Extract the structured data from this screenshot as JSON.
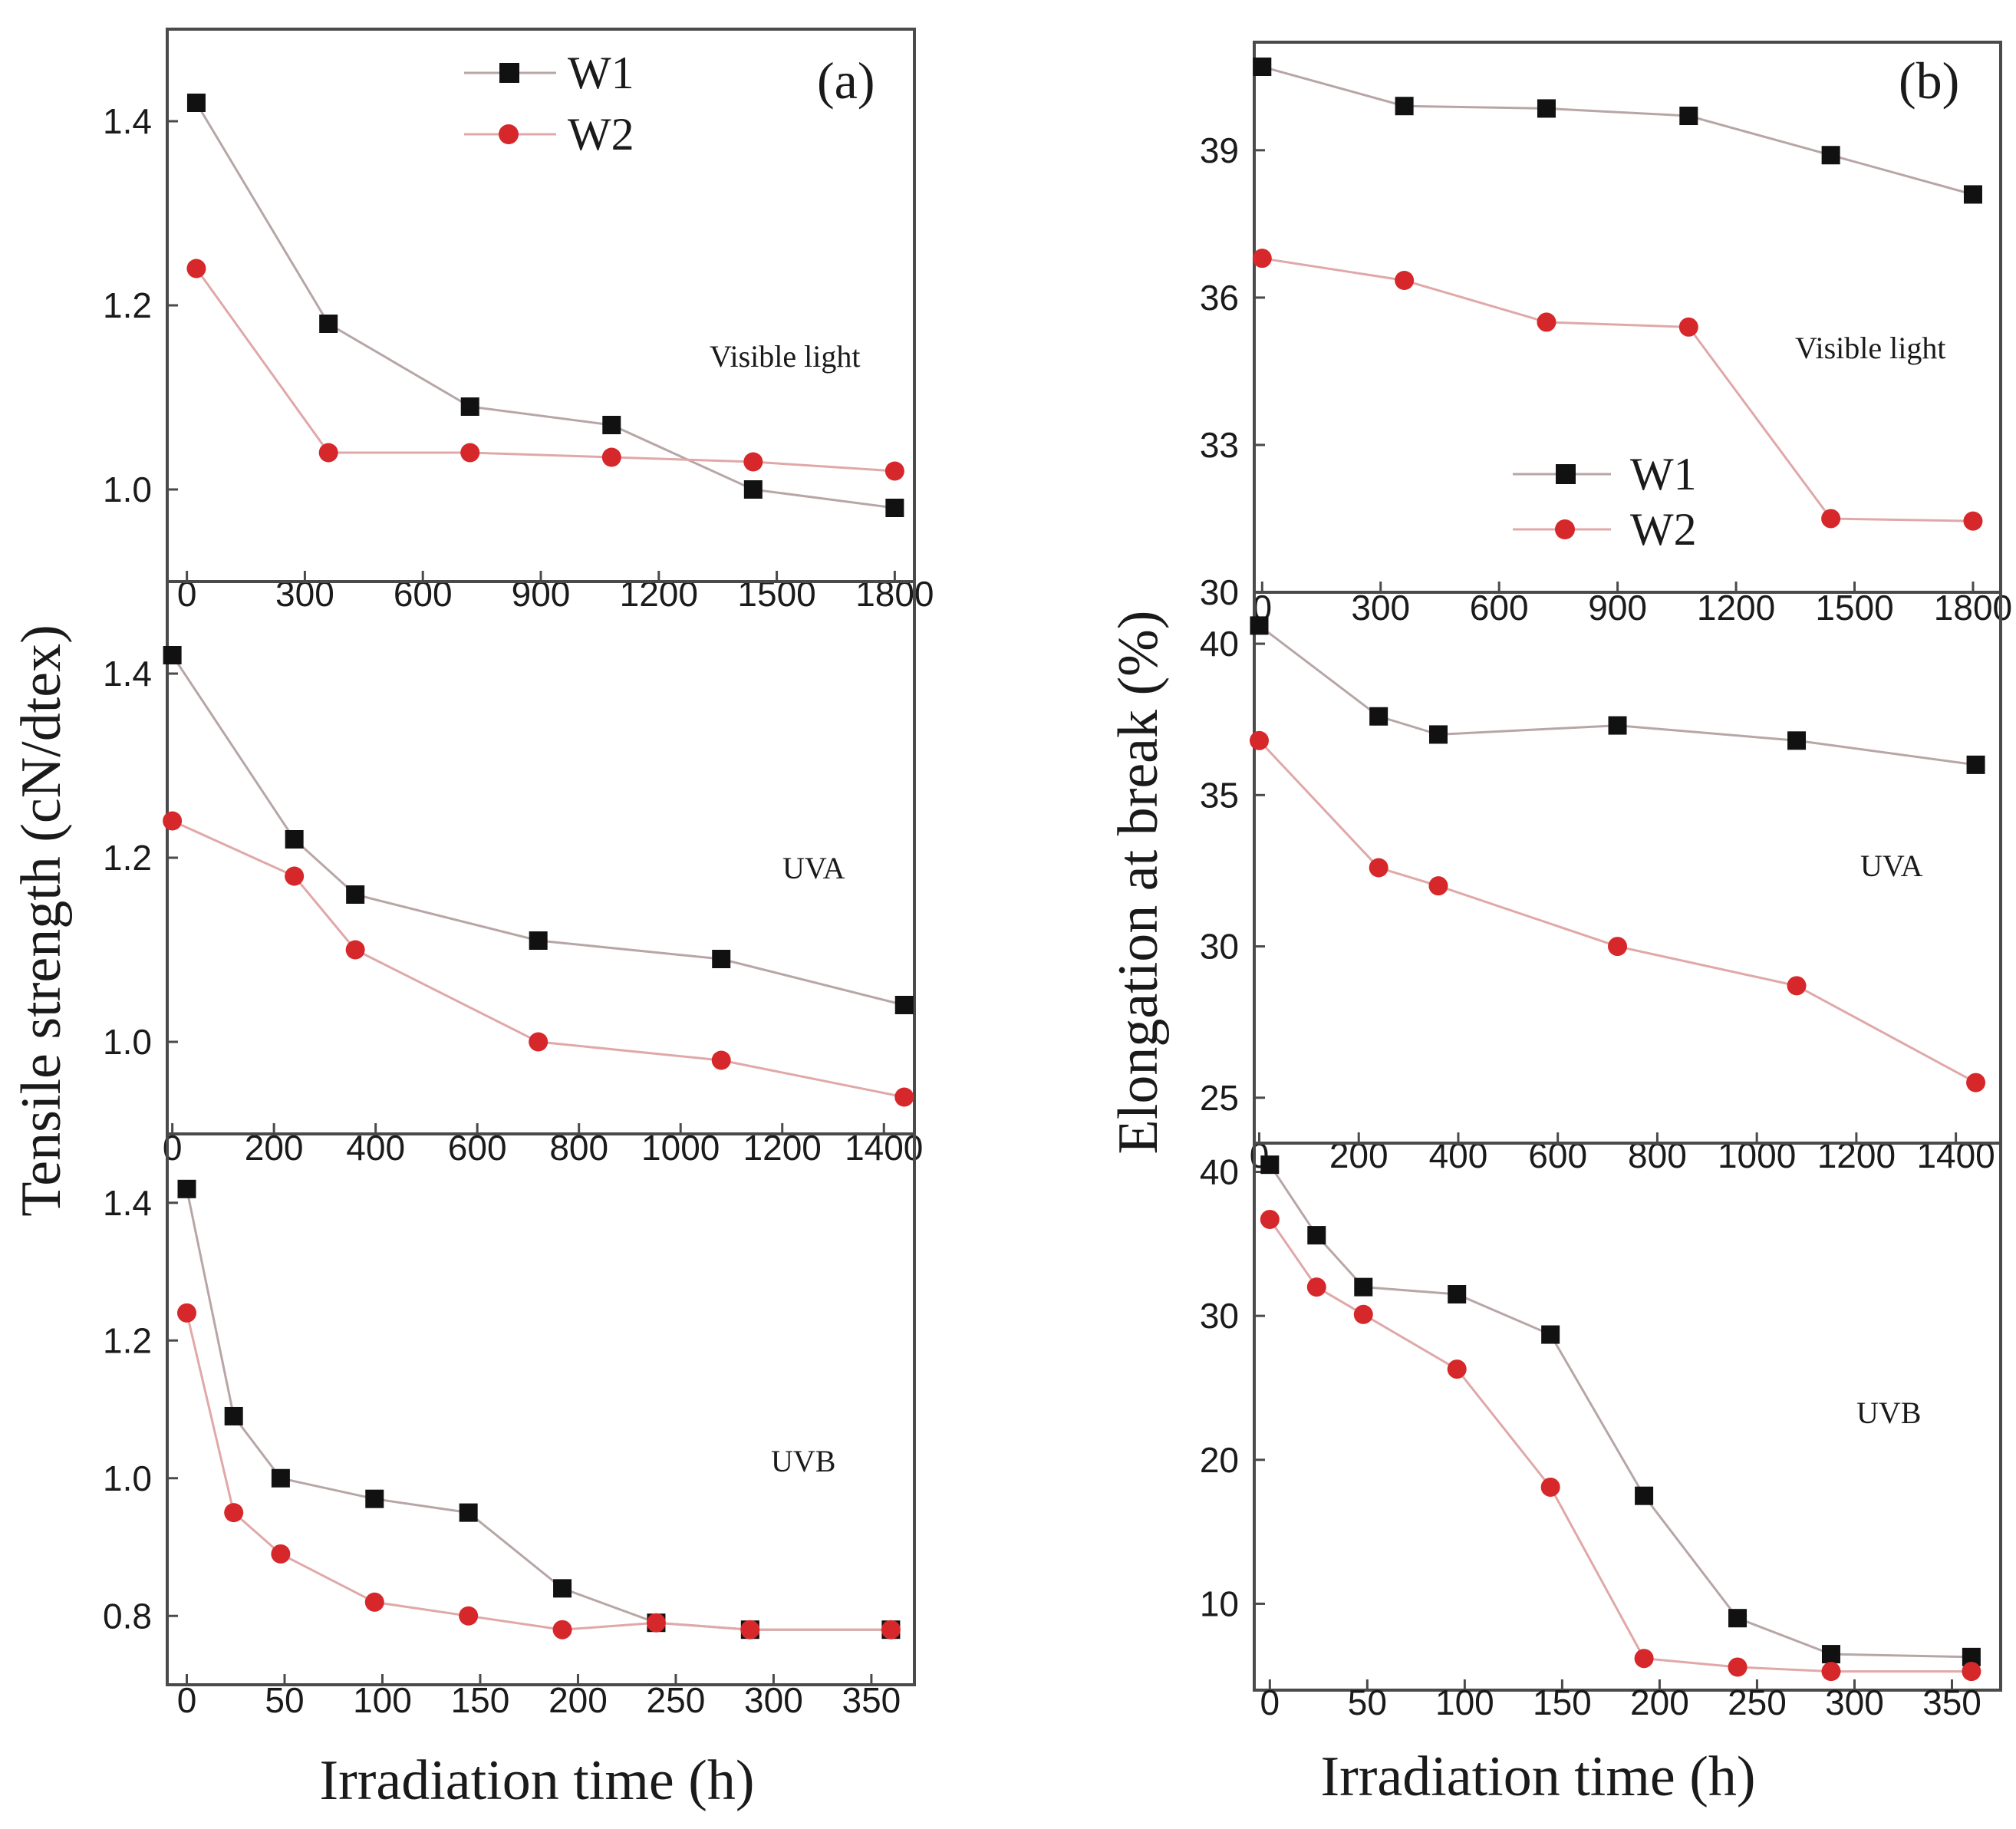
{
  "chart_data": [
    {
      "type": "line",
      "panel": "(a)",
      "condition": "Visible light",
      "ylabel": "Tensile strength (cN/dtex)",
      "xlabel": "Irradiation time (h)",
      "xlim": [
        -50,
        1850
      ],
      "ylim": [
        0.9,
        1.5
      ],
      "xticks": [
        0,
        300,
        600,
        900,
        1200,
        1500,
        1800
      ],
      "yticks": [
        1.0,
        1.2,
        1.4
      ],
      "legend": "top-center",
      "series": [
        {
          "name": "W1",
          "x": [
            24,
            360,
            720,
            1080,
            1440,
            1800
          ],
          "values": [
            1.42,
            1.18,
            1.09,
            1.07,
            1.0,
            0.98
          ]
        },
        {
          "name": "W2",
          "x": [
            24,
            360,
            720,
            1080,
            1440,
            1800
          ],
          "values": [
            1.24,
            1.04,
            1.04,
            1.035,
            1.03,
            1.02
          ]
        }
      ]
    },
    {
      "type": "line",
      "panel": "(a)",
      "condition": "UVA",
      "xlim": [
        -10,
        1460
      ],
      "ylim": [
        0.9,
        1.5
      ],
      "xticks": [
        0,
        200,
        400,
        600,
        800,
        1000,
        1200,
        1400
      ],
      "yticks": [
        1.0,
        1.2,
        1.4
      ],
      "series": [
        {
          "name": "W1",
          "x": [
            0,
            240,
            360,
            720,
            1080,
            1440
          ],
          "values": [
            1.42,
            1.22,
            1.16,
            1.11,
            1.09,
            1.04
          ]
        },
        {
          "name": "W2",
          "x": [
            0,
            240,
            360,
            720,
            1080,
            1440
          ],
          "values": [
            1.24,
            1.18,
            1.1,
            1.0,
            0.98,
            0.94
          ]
        }
      ]
    },
    {
      "type": "line",
      "panel": "(a)",
      "condition": "UVB",
      "xlim": [
        -10,
        372
      ],
      "ylim": [
        0.7,
        1.5
      ],
      "xticks": [
        0,
        50,
        100,
        150,
        200,
        250,
        300,
        350
      ],
      "yticks": [
        0.8,
        1.0,
        1.2,
        1.4
      ],
      "series": [
        {
          "name": "W1",
          "x": [
            0,
            24,
            48,
            96,
            144,
            192,
            240,
            288,
            360
          ],
          "values": [
            1.42,
            1.09,
            1.0,
            0.97,
            0.95,
            0.84,
            0.79,
            0.78,
            0.78
          ]
        },
        {
          "name": "W2",
          "x": [
            0,
            24,
            48,
            96,
            144,
            192,
            240,
            288,
            360
          ],
          "values": [
            1.24,
            0.95,
            0.89,
            0.82,
            0.8,
            0.78,
            0.79,
            0.78,
            0.78
          ]
        }
      ]
    },
    {
      "type": "line",
      "panel": "(b)",
      "condition": "Visible light",
      "ylabel": "Elongation at break (%)",
      "xlabel": "Irradiation time (h)",
      "xlim": [
        -20,
        1870
      ],
      "ylim": [
        30,
        41.2
      ],
      "xticks": [
        0,
        300,
        600,
        900,
        1200,
        1500,
        1800
      ],
      "yticks": [
        30,
        33,
        36,
        39
      ],
      "legend": "center",
      "series": [
        {
          "name": "W1",
          "x": [
            0,
            360,
            720,
            1080,
            1440,
            1800
          ],
          "values": [
            40.7,
            39.9,
            39.85,
            39.7,
            38.9,
            38.1
          ]
        },
        {
          "name": "W2",
          "x": [
            0,
            360,
            720,
            1080,
            1440,
            1800
          ],
          "values": [
            36.8,
            36.35,
            35.5,
            35.4,
            31.5,
            31.45
          ]
        }
      ]
    },
    {
      "type": "line",
      "panel": "(b)",
      "condition": "UVA",
      "xlim": [
        -10,
        1490
      ],
      "ylim": [
        23.5,
        41.7
      ],
      "xticks": [
        0,
        200,
        400,
        600,
        800,
        1000,
        1200,
        1400
      ],
      "yticks": [
        25,
        30,
        35,
        40
      ],
      "series": [
        {
          "name": "W1",
          "x": [
            0,
            240,
            360,
            720,
            1080,
            1440
          ],
          "values": [
            40.6,
            37.6,
            37.0,
            37.3,
            36.8,
            36.0
          ]
        },
        {
          "name": "W2",
          "x": [
            0,
            240,
            360,
            720,
            1080,
            1440
          ],
          "values": [
            36.8,
            32.6,
            32.0,
            30.0,
            28.7,
            25.5
          ]
        }
      ]
    },
    {
      "type": "line",
      "panel": "(b)",
      "condition": "UVB",
      "xlim": [
        -8,
        375
      ],
      "ylim": [
        4,
        42
      ],
      "xticks": [
        0,
        50,
        100,
        150,
        200,
        250,
        300,
        350
      ],
      "yticks": [
        10,
        20,
        30,
        40
      ],
      "series": [
        {
          "name": "W1",
          "x": [
            0,
            24,
            48,
            96,
            144,
            192,
            240,
            288,
            360
          ],
          "values": [
            40.5,
            35.6,
            32.0,
            31.5,
            28.7,
            17.5,
            9.0,
            6.5,
            6.3
          ]
        },
        {
          "name": "W2",
          "x": [
            0,
            24,
            48,
            96,
            144,
            192,
            240,
            288,
            360
          ],
          "values": [
            36.7,
            32.0,
            30.1,
            26.3,
            18.1,
            6.2,
            5.6,
            5.3,
            5.3
          ]
        }
      ]
    }
  ],
  "colors": {
    "W1": "#111111",
    "W2": "#d6272b"
  },
  "labels": {
    "panel_a": "(a)",
    "panel_b": "(b)",
    "visible": "Visible light",
    "uva": "UVA",
    "uvb": "UVB",
    "legend_w1": "W1",
    "legend_w2": "W2",
    "ylabel_a": "Tensile strength (cN/dtex)",
    "ylabel_b": "Elongation at break (%)",
    "xlabel_a": "Irradiation time (h)",
    "xlabel_b": "Irradiation time (h)"
  }
}
